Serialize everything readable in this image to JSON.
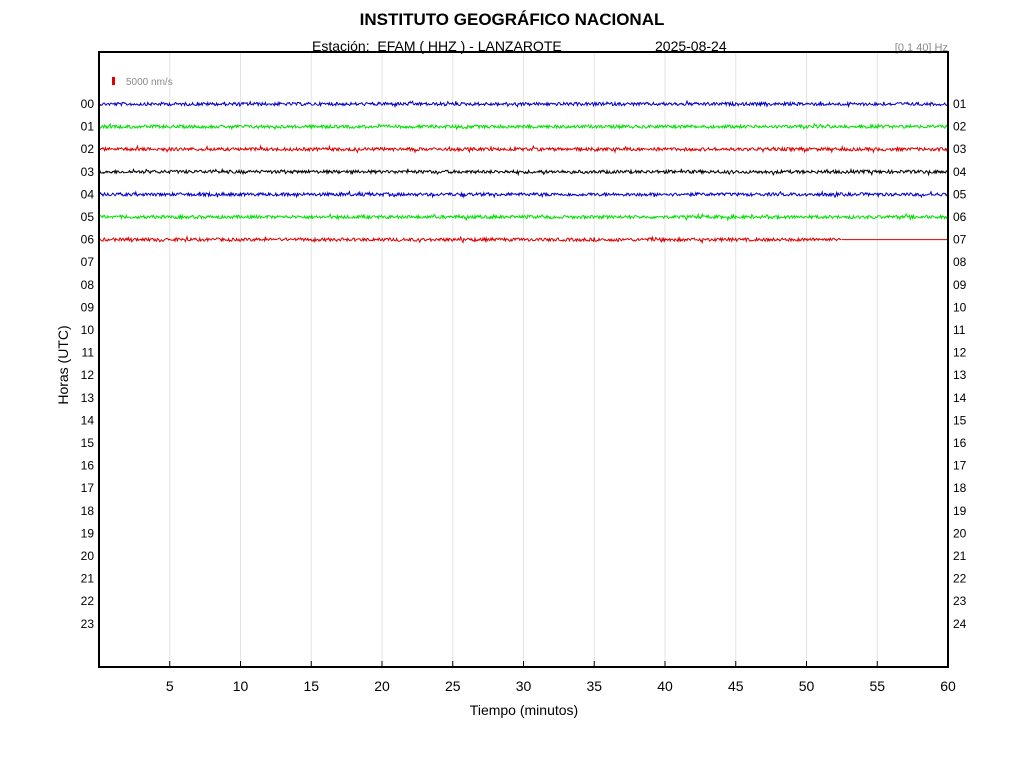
{
  "header": {
    "title": "INSTITUTO GEOGRÁFICO NACIONAL",
    "station_label": "Estación:  EFAM ( HHZ ) - LANZAROTE",
    "date": "2025-08-24",
    "filter_band": "[0.1 40] Hz"
  },
  "chart_data": {
    "type": "line",
    "xlabel": "Tiempo (minutos)",
    "ylabel": "Horas (UTC)",
    "xlim": [
      0,
      60
    ],
    "x_ticks": [
      5,
      10,
      15,
      20,
      25,
      30,
      35,
      40,
      45,
      50,
      55,
      60
    ],
    "grid": "vertical",
    "left_hour_labels": [
      "00",
      "01",
      "02",
      "03",
      "04",
      "05",
      "06",
      "07",
      "08",
      "09",
      "10",
      "11",
      "12",
      "13",
      "14",
      "15",
      "16",
      "17",
      "18",
      "19",
      "20",
      "21",
      "22",
      "23"
    ],
    "right_hour_labels": [
      "01",
      "02",
      "03",
      "04",
      "05",
      "06",
      "07",
      "08",
      "09",
      "10",
      "11",
      "12",
      "13",
      "14",
      "15",
      "16",
      "17",
      "18",
      "19",
      "20",
      "21",
      "22",
      "23",
      "24"
    ],
    "scale_label": "5000 nm/s",
    "scale_color": "#e00000",
    "traces": [
      {
        "hour": 0,
        "color": "#0000cc",
        "end_minute": 60
      },
      {
        "hour": 1,
        "color": "#00e000",
        "end_minute": 60
      },
      {
        "hour": 2,
        "color": "#dd0000",
        "end_minute": 60
      },
      {
        "hour": 3,
        "color": "#000000",
        "end_minute": 60
      },
      {
        "hour": 4,
        "color": "#0000cc",
        "end_minute": 60
      },
      {
        "hour": 5,
        "color": "#00e000",
        "end_minute": 60
      },
      {
        "hour": 6,
        "color": "#dd0000",
        "end_minute": 52.5
      }
    ]
  }
}
